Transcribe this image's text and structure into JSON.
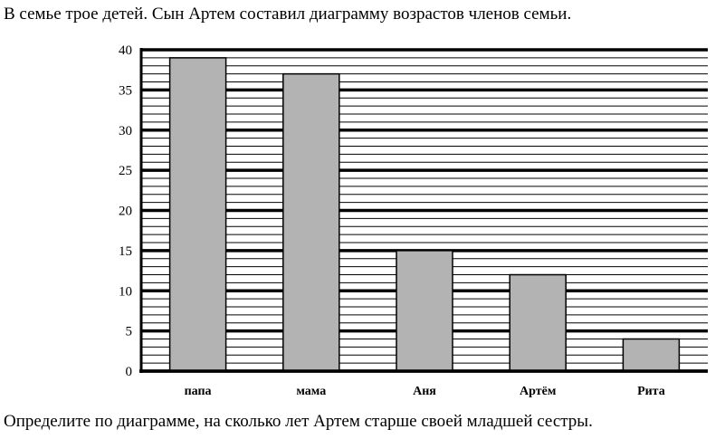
{
  "intro_text": "В семье трое детей. Сын Артем составил диаграмму возрастов членов семьи.",
  "question_text": "Определите по диаграмме, на сколько лет Артем старше своей младшей сестры.",
  "chart_data": {
    "type": "bar",
    "categories": [
      "папа",
      "мама",
      "Аня",
      "Артём",
      "Рита"
    ],
    "values": [
      39,
      37,
      15,
      12,
      4
    ],
    "ylim": [
      0,
      40
    ],
    "yticks": [
      0,
      5,
      10,
      15,
      20,
      25,
      30,
      35,
      40
    ],
    "minor_step": 1,
    "grid": true,
    "bar_color": "#b3b3b3",
    "title": "",
    "xlabel": "",
    "ylabel": ""
  }
}
